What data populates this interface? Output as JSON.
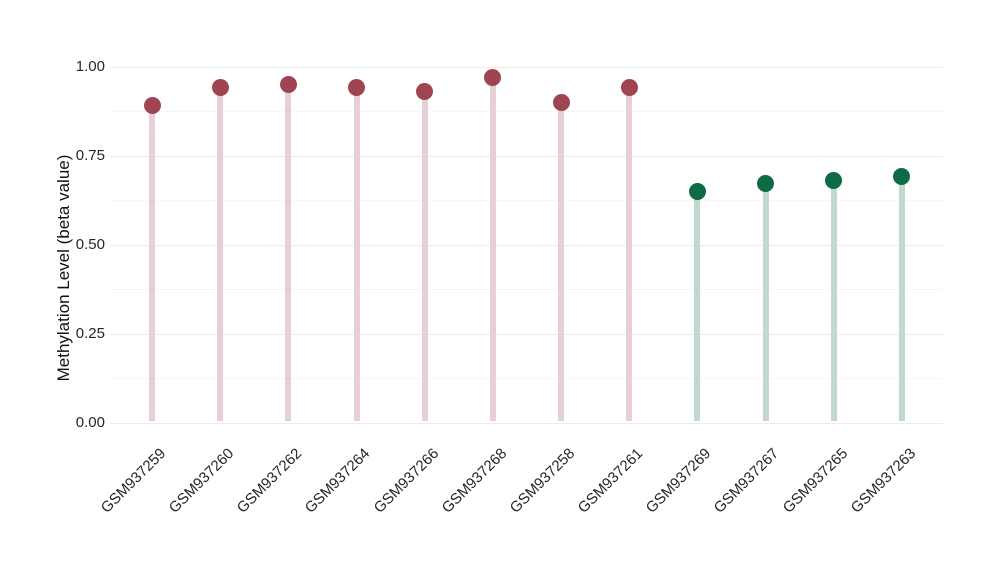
{
  "chart_data": {
    "type": "lollipop",
    "title": "",
    "ylabel": "Methylation Level (beta value)",
    "xlabel": "",
    "ylim": [
      0,
      1
    ],
    "yticks": [
      "0.00",
      "0.25",
      "0.50",
      "0.75",
      "1.00"
    ],
    "grid": "horizontal major gridlines with fainter minor gridlines at 0.125 intervals, light gray on white",
    "legend_position": "none",
    "categories": [
      "GSM937259",
      "GSM937260",
      "GSM937262",
      "GSM937264",
      "GSM937266",
      "GSM937268",
      "GSM937258",
      "GSM937261",
      "GSM937269",
      "GSM937267",
      "GSM937265",
      "GSM937263"
    ],
    "series": [
      {
        "name": "Methylation Level (beta value)",
        "values": [
          0.89,
          0.94,
          0.95,
          0.94,
          0.93,
          0.97,
          0.9,
          0.94,
          0.65,
          0.67,
          0.68,
          0.69
        ],
        "groups": [
          "high",
          "high",
          "high",
          "high",
          "high",
          "high",
          "high",
          "high",
          "low",
          "low",
          "low",
          "low"
        ]
      }
    ],
    "colors": {
      "high_dot": "#9e4551",
      "high_stem": "#e6cfd5",
      "low_dot": "#0d6b46",
      "low_stem": "#c2d8cd",
      "grid_major": "#ececec",
      "grid_minor": "#f6f6f6",
      "tick_text": "#262626",
      "axis_title_text": "#111111",
      "background": "#ffffff"
    }
  }
}
